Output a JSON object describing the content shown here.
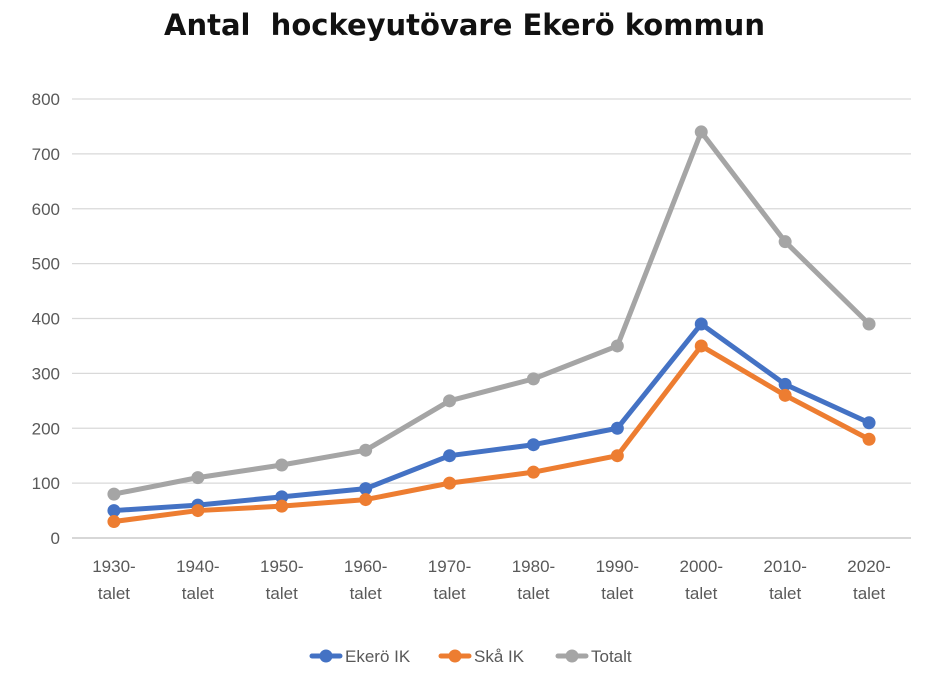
{
  "chart_data": {
    "type": "line",
    "title": "Antal  hockeyutövare Ekerö kommun",
    "xlabel": "",
    "ylabel": "",
    "categories": [
      [
        "1930-",
        "talet"
      ],
      [
        "1940-",
        "talet"
      ],
      [
        "1950-",
        "talet"
      ],
      [
        "1960-",
        "talet"
      ],
      [
        "1970-",
        "talet"
      ],
      [
        "1980-",
        "talet"
      ],
      [
        "1990-",
        "talet"
      ],
      [
        "2000-",
        "talet"
      ],
      [
        "2010-",
        "talet"
      ],
      [
        "2020-",
        "talet"
      ]
    ],
    "ylim": [
      0,
      800
    ],
    "yticks": [
      "0",
      "100",
      "200",
      "300",
      "400",
      "500",
      "600",
      "700",
      "800"
    ],
    "grid": true,
    "legend_position": "bottom",
    "series": [
      {
        "name": "Ekerö IK",
        "color": "#4472C4",
        "values": [
          50,
          60,
          75,
          90,
          150,
          170,
          200,
          390,
          280,
          210
        ]
      },
      {
        "name": "Skå IK",
        "color": "#ED7D31",
        "values": [
          30,
          50,
          58,
          70,
          100,
          120,
          150,
          350,
          260,
          180
        ]
      },
      {
        "name": "Totalt",
        "color": "#A5A5A5",
        "values": [
          80,
          110,
          133,
          160,
          250,
          290,
          350,
          740,
          540,
          390
        ]
      }
    ]
  }
}
